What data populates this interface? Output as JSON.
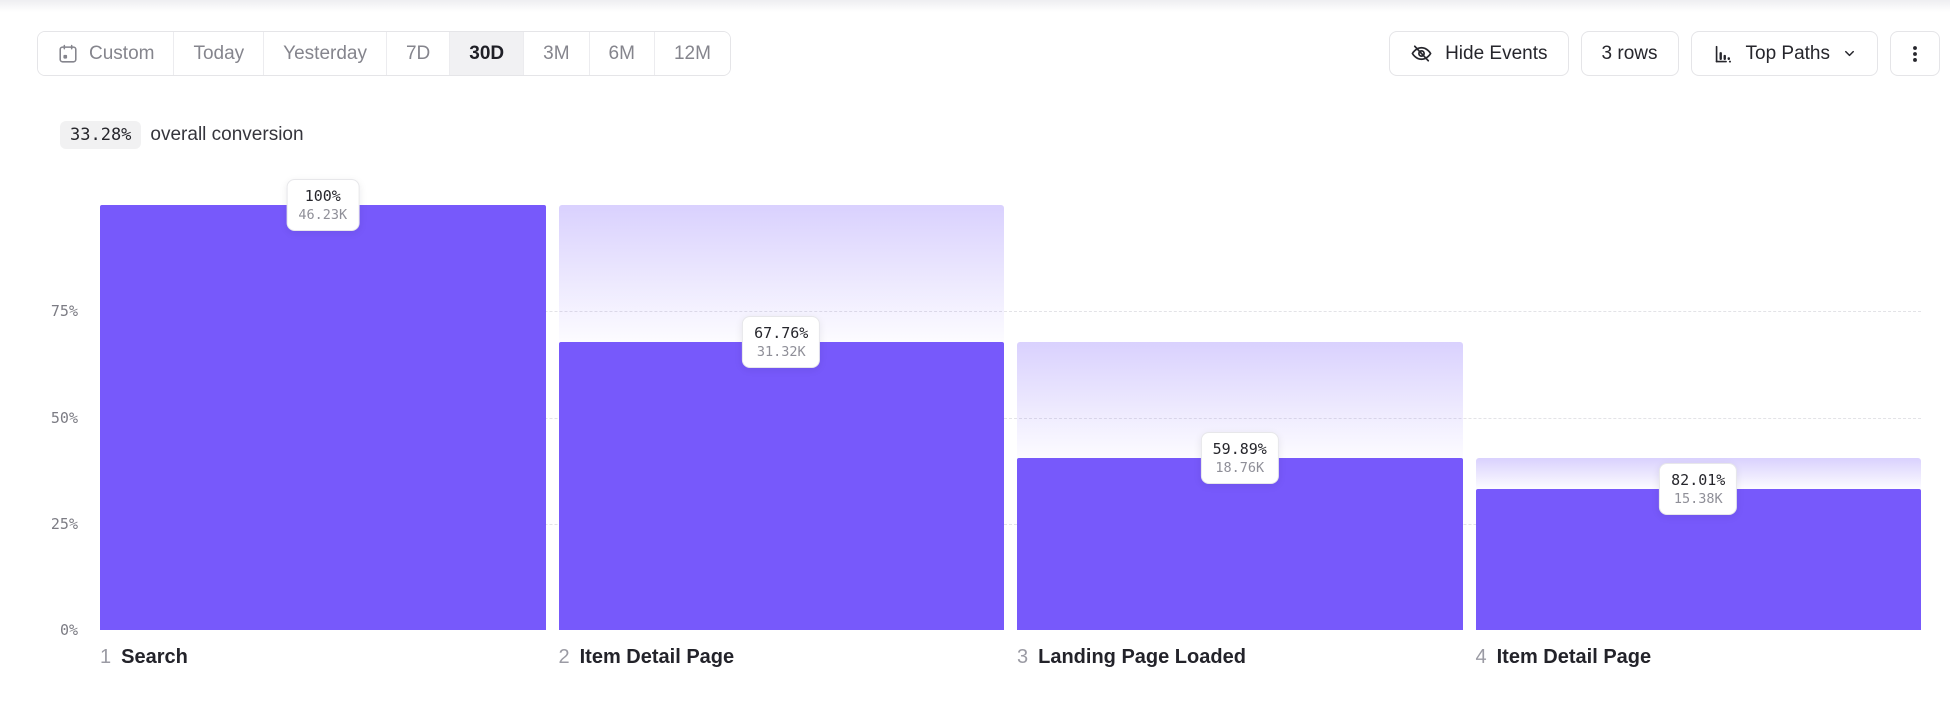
{
  "toolbar": {
    "date_ranges": [
      {
        "label": "Custom",
        "selected": false,
        "icon": "calendar-icon"
      },
      {
        "label": "Today",
        "selected": false
      },
      {
        "label": "Yesterday",
        "selected": false
      },
      {
        "label": "7D",
        "selected": false
      },
      {
        "label": "30D",
        "selected": true
      },
      {
        "label": "3M",
        "selected": false
      },
      {
        "label": "6M",
        "selected": false
      },
      {
        "label": "12M",
        "selected": false
      }
    ],
    "hide_events_label": "Hide Events",
    "rows_label": "3 rows",
    "top_paths_label": "Top Paths"
  },
  "summary": {
    "value": "33.28%",
    "text": "overall conversion"
  },
  "chart_data": {
    "type": "bar",
    "subtype": "funnel",
    "title": "33.28% overall conversion",
    "ylim": [
      0,
      100
    ],
    "y_ticks": [
      "75%",
      "50%",
      "25%",
      "0%"
    ],
    "grid": "dashed horizontal lines at 25%, 50%, 75%",
    "legend": "none",
    "overall_conversion_pct": 33.28,
    "steps": [
      {
        "index": "1",
        "name": "Search",
        "step_conversion_label": "100%",
        "count_label": "46.23K",
        "abs_pct": 100,
        "prev_abs_pct": 100
      },
      {
        "index": "2",
        "name": "Item Detail Page",
        "step_conversion_label": "67.76%",
        "count_label": "31.32K",
        "abs_pct": 67.76,
        "prev_abs_pct": 100
      },
      {
        "index": "3",
        "name": "Landing Page Loaded",
        "step_conversion_label": "59.89%",
        "count_label": "18.76K",
        "abs_pct": 40.58,
        "prev_abs_pct": 67.76
      },
      {
        "index": "4",
        "name": "Item Detail Page",
        "step_conversion_label": "82.01%",
        "count_label": "15.38K",
        "abs_pct": 33.27,
        "prev_abs_pct": 40.58
      }
    ],
    "colors": {
      "bar": "#7759fb",
      "dropoff_top": "rgba(119,89,251,0.28)",
      "dropoff_bottom": "rgba(119,89,251,0.02)"
    }
  }
}
